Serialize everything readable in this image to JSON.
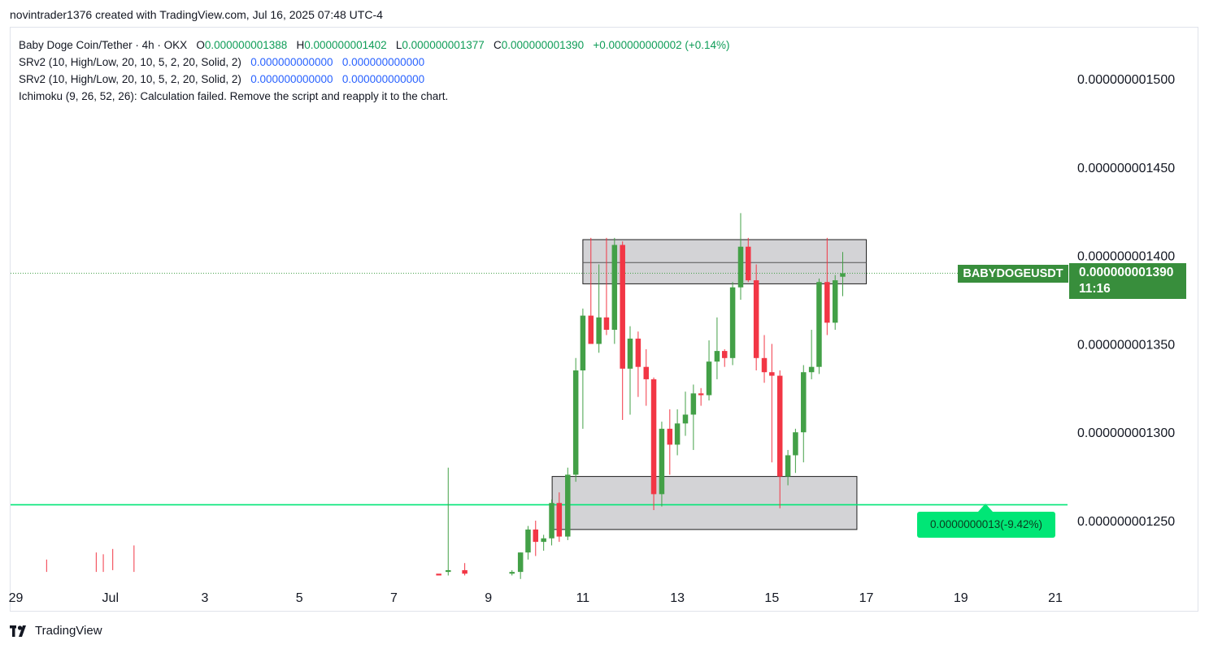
{
  "header": {
    "credit": "novintrader1376 created with TradingView.com, Jul 16, 2025 07:48 UTC-4"
  },
  "legend": {
    "symbol_line": "Baby Doge Coin/Tether · 4h · OKX",
    "o_label": "O",
    "o_value": "0.000000001388",
    "h_label": "H",
    "h_value": "0.000000001402",
    "l_label": "L",
    "l_value": "0.000000001377",
    "c_label": "C",
    "c_value": "0.000000001390",
    "change": "+0.000000000002 (+0.14%)",
    "indicators": [
      {
        "label": "SRv2 (10, High/Low, 20, 10, 5, 2, 20, Solid, 2)",
        "v1": "0.000000000000",
        "v2": "0.000000000000"
      },
      {
        "label": "SRv2 (10, High/Low, 20, 10, 5, 2, 20, Solid, 2)",
        "v1": "0.000000000000",
        "v2": "0.000000000000"
      }
    ],
    "ichimoku": "Ichimoku (9, 26, 52, 26): Calculation failed. Remove the script and reapply it to the chart."
  },
  "tags": {
    "symbol": "BABYDOGEUSDT",
    "last_price": "0.000000001390",
    "countdown": "11:16",
    "measure": "0.0000000013(-9.42%)"
  },
  "brand": {
    "name": "TradingView",
    "logo": "tradingview-logo-icon"
  },
  "colors": {
    "up": "#43a047",
    "down": "#f23645",
    "support": "#00e676",
    "zone": "#d1d1d4",
    "last_price_bg": "#388e3c"
  },
  "chart_data": {
    "type": "candlestick",
    "timeframe": "4h",
    "x_ticks": [
      "29",
      "Jul",
      "3",
      "5",
      "7",
      "9",
      "11",
      "13",
      "15",
      "17",
      "19",
      "21"
    ],
    "y_ticks": [
      "0.000000001250",
      "0.000000001300",
      "0.000000001350",
      "0.000000001400",
      "0.000000001450",
      "0.000000001500"
    ],
    "ylim": [
      1.22,
      1.52
    ],
    "y_unit": "1e-9 USDT",
    "last_price": 1.39,
    "support_line": 1.259,
    "zones": [
      {
        "name": "resistance-zone",
        "from_day": 11.0,
        "to_day": 17.0,
        "low": 1.384,
        "high": 1.409,
        "mid": 1.396
      },
      {
        "name": "support-zone",
        "from_day": 10.35,
        "to_day": 16.8,
        "low": 1.245,
        "high": 1.275
      }
    ],
    "candles": [
      [
        7.95,
        1.22,
        1.22,
        1.22,
        1.219
      ],
      [
        8.15,
        1.221,
        1.28,
        1.219,
        1.222
      ],
      [
        8.5,
        1.222,
        1.226,
        1.219,
        1.22
      ],
      [
        9.5,
        1.22,
        1.222,
        1.219,
        1.221
      ],
      [
        9.68,
        1.221,
        1.232,
        1.217,
        1.232
      ],
      [
        9.84,
        1.232,
        1.247,
        1.228,
        1.245
      ],
      [
        10.0,
        1.245,
        1.25,
        1.23,
        1.238
      ],
      [
        10.17,
        1.238,
        1.242,
        1.233,
        1.24
      ],
      [
        10.34,
        1.24,
        1.262,
        1.236,
        1.26
      ],
      [
        10.5,
        1.26,
        1.266,
        1.238,
        1.241
      ],
      [
        10.68,
        1.241,
        1.28,
        1.239,
        1.276
      ],
      [
        10.85,
        1.276,
        1.342,
        1.272,
        1.335
      ],
      [
        11.0,
        1.335,
        1.37,
        1.302,
        1.366
      ],
      [
        11.17,
        1.366,
        1.41,
        1.353,
        1.35
      ],
      [
        11.34,
        1.35,
        1.395,
        1.345,
        1.365
      ],
      [
        11.5,
        1.365,
        1.41,
        1.355,
        1.358
      ],
      [
        11.67,
        1.358,
        1.41,
        1.35,
        1.406
      ],
      [
        11.84,
        1.406,
        1.408,
        1.307,
        1.336
      ],
      [
        12.0,
        1.336,
        1.36,
        1.31,
        1.353
      ],
      [
        12.17,
        1.353,
        1.357,
        1.32,
        1.337
      ],
      [
        12.34,
        1.337,
        1.347,
        1.315,
        1.33
      ],
      [
        12.5,
        1.33,
        1.331,
        1.256,
        1.265
      ],
      [
        12.67,
        1.265,
        1.306,
        1.258,
        1.302
      ],
      [
        12.84,
        1.302,
        1.313,
        1.276,
        1.293
      ],
      [
        13.0,
        1.293,
        1.313,
        1.287,
        1.305
      ],
      [
        13.17,
        1.305,
        1.323,
        1.298,
        1.31
      ],
      [
        13.34,
        1.31,
        1.327,
        1.29,
        1.322
      ],
      [
        13.5,
        1.322,
        1.325,
        1.315,
        1.321
      ],
      [
        13.67,
        1.321,
        1.352,
        1.318,
        1.34
      ],
      [
        13.84,
        1.34,
        1.365,
        1.33,
        1.346
      ],
      [
        14.0,
        1.346,
        1.347,
        1.337,
        1.342
      ],
      [
        14.17,
        1.342,
        1.385,
        1.338,
        1.382
      ],
      [
        14.34,
        1.382,
        1.424,
        1.375,
        1.405
      ],
      [
        14.5,
        1.405,
        1.41,
        1.385,
        1.386
      ],
      [
        14.67,
        1.386,
        1.395,
        1.335,
        1.342
      ],
      [
        14.84,
        1.342,
        1.355,
        1.328,
        1.334
      ],
      [
        15.0,
        1.334,
        1.35,
        1.283,
        1.332
      ],
      [
        15.17,
        1.332,
        1.335,
        1.257,
        1.275
      ],
      [
        15.34,
        1.275,
        1.29,
        1.27,
        1.287
      ],
      [
        15.5,
        1.287,
        1.302,
        1.277,
        1.3
      ],
      [
        15.67,
        1.3,
        1.338,
        1.283,
        1.334
      ],
      [
        15.84,
        1.334,
        1.358,
        1.33,
        1.337
      ],
      [
        16.0,
        1.337,
        1.387,
        1.333,
        1.385
      ],
      [
        16.17,
        1.385,
        1.41,
        1.355,
        1.362
      ],
      [
        16.34,
        1.362,
        1.389,
        1.358,
        1.386
      ],
      [
        16.5,
        1.388,
        1.402,
        1.377,
        1.39
      ]
    ],
    "early_spikes": [
      [
        -0.35,
        1.228,
        1.221
      ],
      [
        0.7,
        1.232,
        1.221
      ],
      [
        0.85,
        1.231,
        1.221
      ],
      [
        1.05,
        1.234,
        1.222
      ],
      [
        1.5,
        1.236,
        1.221
      ]
    ]
  }
}
